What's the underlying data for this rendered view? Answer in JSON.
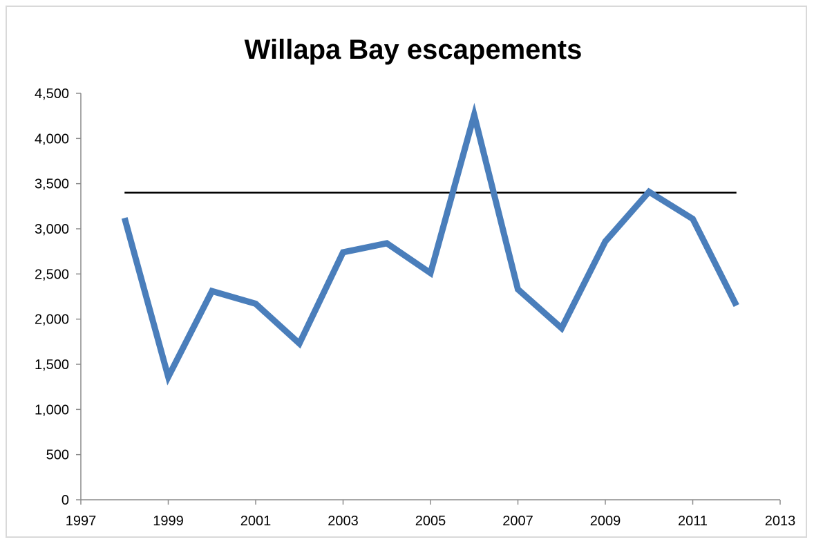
{
  "chart_data": {
    "type": "line",
    "title": "Willapa Bay escapements",
    "xlabel": "",
    "ylabel": "",
    "x": [
      1998,
      1999,
      2000,
      2001,
      2002,
      2003,
      2004,
      2005,
      2006,
      2007,
      2008,
      2009,
      2010,
      2011,
      2012
    ],
    "series": [
      {
        "values": [
          3120,
          1360,
          2310,
          2170,
          1730,
          2740,
          2840,
          2510,
          4260,
          2330,
          1900,
          2860,
          3410,
          3110,
          2150
        ],
        "color": "#4a7ebb"
      }
    ],
    "reference_line": {
      "value": 3400,
      "x_start": 1998,
      "x_end": 2012,
      "color": "#000000"
    },
    "xlim": [
      1997,
      2013
    ],
    "ylim": [
      0,
      4500
    ],
    "x_ticks": [
      1997,
      1999,
      2001,
      2003,
      2005,
      2007,
      2009,
      2011,
      2013
    ],
    "x_tick_labels": [
      "1997",
      "1999",
      "2001",
      "2003",
      "2005",
      "2007",
      "2009",
      "2011",
      "2013"
    ],
    "y_ticks": [
      0,
      500,
      1000,
      1500,
      2000,
      2500,
      3000,
      3500,
      4000,
      4500
    ],
    "y_tick_labels": [
      "0",
      "500",
      "1,000",
      "1,500",
      "2,000",
      "2,500",
      "3,000",
      "3,500",
      "4,000",
      "4,500"
    ],
    "grid": false,
    "legend": "none"
  }
}
